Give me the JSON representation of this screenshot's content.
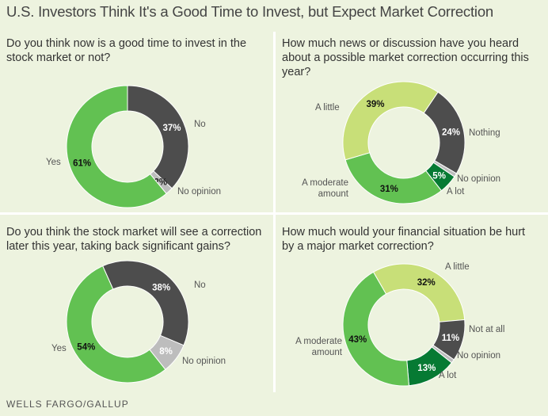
{
  "title": "U.S. Investors Think It's a Good Time to Invest, but Expect Market Correction",
  "source": "WELLS FARGO/GALLUP",
  "colors": {
    "background": "#edf3df",
    "dark": "#4d4d4d",
    "green": "#62c152",
    "light_green": "#c8df78",
    "dark_green": "#067a33",
    "gray": "#bdbdbd"
  },
  "chart_data": [
    {
      "type": "pie",
      "subtype": "donut",
      "title": "Do you think now is a good time to invest in the stock market or not?",
      "slices": [
        {
          "label": "No",
          "value": 37,
          "display": "37%",
          "color": "#4d4d4d",
          "text": "#fff"
        },
        {
          "label": "No opinion",
          "value": 2,
          "display": "2%",
          "color": "#bdbdbd",
          "text": "#222"
        },
        {
          "label": "Yes",
          "value": 61,
          "display": "61%",
          "color": "#62c152",
          "text": "#111"
        }
      ]
    },
    {
      "type": "pie",
      "subtype": "donut",
      "title": "How much news or discussion have you heard about a possible market correction occurring this year?",
      "slices": [
        {
          "label": "Nothing",
          "value": 24,
          "display": "24%",
          "color": "#4d4d4d",
          "text": "#fff"
        },
        {
          "label": "No opinion",
          "value": 1,
          "display": "",
          "color": "#bdbdbd",
          "text": "#222"
        },
        {
          "label": "A lot",
          "value": 5,
          "display": "5%",
          "color": "#067a33",
          "text": "#fff"
        },
        {
          "label": "A moderate amount",
          "value": 31,
          "display": "31%",
          "color": "#62c152",
          "text": "#111"
        },
        {
          "label": "A little",
          "value": 39,
          "display": "39%",
          "color": "#c8df78",
          "text": "#111"
        }
      ]
    },
    {
      "type": "pie",
      "subtype": "donut",
      "title": "Do you think the stock market will see a correction later this year, taking back significant gains?",
      "slices": [
        {
          "label": "No",
          "value": 38,
          "display": "38%",
          "color": "#4d4d4d",
          "text": "#fff"
        },
        {
          "label": "No opinion",
          "value": 8,
          "display": "8%",
          "color": "#bdbdbd",
          "text": "#fff"
        },
        {
          "label": "Yes",
          "value": 54,
          "display": "54%",
          "color": "#62c152",
          "text": "#111"
        }
      ]
    },
    {
      "type": "pie",
      "subtype": "donut",
      "title": "How much would your financial situation be hurt by a major market correction?",
      "slices": [
        {
          "label": "A little",
          "value": 32,
          "display": "32%",
          "color": "#c8df78",
          "text": "#111"
        },
        {
          "label": "Not at all",
          "value": 11,
          "display": "11%",
          "color": "#4d4d4d",
          "text": "#fff"
        },
        {
          "label": "No opinion",
          "value": 1,
          "display": "",
          "color": "#bdbdbd",
          "text": "#222"
        },
        {
          "label": "A lot",
          "value": 13,
          "display": "13%",
          "color": "#067a33",
          "text": "#fff"
        },
        {
          "label": "A moderate amount",
          "value": 43,
          "display": "43%",
          "color": "#62c152",
          "text": "#111"
        }
      ]
    }
  ]
}
